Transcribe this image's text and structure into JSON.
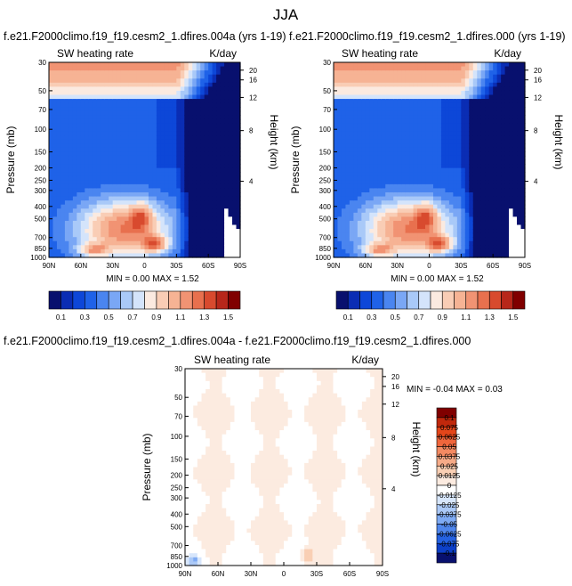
{
  "figure": {
    "title": "JJA"
  },
  "chart_data": [
    {
      "type": "heatmap",
      "title": "f.e21.F2000climo.f19_f19.cesm2_1.dfires.004a (yrs 1-19)",
      "left_subtitle": "SW heating rate",
      "right_subtitle": "K/day",
      "xlabel": "",
      "ylabel": "Pressure (mb)",
      "y2label": "Height (km)",
      "x_ticks": [
        "90N",
        "60N",
        "30N",
        "0",
        "30S",
        "60S",
        "90S"
      ],
      "y_ticks": [
        "30",
        "50",
        "70",
        "100",
        "150",
        "200",
        "250",
        "300",
        "400",
        "500",
        "700",
        "850",
        "1000"
      ],
      "y_tick_values": [
        30,
        50,
        70,
        100,
        150,
        200,
        250,
        300,
        400,
        500,
        700,
        850,
        1000
      ],
      "y2_ticks": [
        "20",
        "16",
        "12",
        "8",
        "4"
      ],
      "ylim": [
        1000,
        30
      ],
      "min_max": "MIN = 0.00 MAX = 1.52",
      "colorbar_labels": [
        "0.1",
        "0.3",
        "0.5",
        "0.7",
        "0.9",
        "1.1",
        "1.3",
        "1.5"
      ],
      "levels": [
        0.1,
        0.2,
        0.3,
        0.4,
        0.5,
        0.6,
        0.7,
        0.8,
        0.9,
        1.0,
        1.1,
        1.2,
        1.3,
        1.4,
        1.5
      ],
      "colors": [
        "#08106e",
        "#0a2db4",
        "#0d47d8",
        "#1f62e8",
        "#4a85f0",
        "#7aa7f5",
        "#a9c9f8",
        "#d4e4fb",
        "#fbeae0",
        "#f9cdb5",
        "#f6b394",
        "#f19373",
        "#e8704e",
        "#d84a2e",
        "#b7271a",
        "#800000"
      ]
    },
    {
      "type": "heatmap",
      "title": "f.e21.F2000climo.f19_f19.cesm2_1.dfires.000 (yrs 1-19)",
      "left_subtitle": "SW heating rate",
      "right_subtitle": "K/day",
      "xlabel": "",
      "ylabel": "Pressure (mb)",
      "y2label": "Height (km)",
      "x_ticks": [
        "90N",
        "60N",
        "30N",
        "0",
        "30S",
        "60S",
        "90S"
      ],
      "y_ticks": [
        "30",
        "50",
        "70",
        "100",
        "150",
        "200",
        "250",
        "300",
        "400",
        "500",
        "700",
        "850",
        "1000"
      ],
      "y_tick_values": [
        30,
        50,
        70,
        100,
        150,
        200,
        250,
        300,
        400,
        500,
        700,
        850,
        1000
      ],
      "y2_ticks": [
        "20",
        "16",
        "12",
        "8",
        "4"
      ],
      "ylim": [
        1000,
        30
      ],
      "min_max": "MIN = 0.00 MAX = 1.52",
      "colorbar_labels": [
        "0.1",
        "0.3",
        "0.5",
        "0.7",
        "0.9",
        "1.1",
        "1.3",
        "1.5"
      ],
      "levels": [
        0.1,
        0.2,
        0.3,
        0.4,
        0.5,
        0.6,
        0.7,
        0.8,
        0.9,
        1.0,
        1.1,
        1.2,
        1.3,
        1.4,
        1.5
      ],
      "colors": [
        "#08106e",
        "#0a2db4",
        "#0d47d8",
        "#1f62e8",
        "#4a85f0",
        "#7aa7f5",
        "#a9c9f8",
        "#d4e4fb",
        "#fbeae0",
        "#f9cdb5",
        "#f6b394",
        "#f19373",
        "#e8704e",
        "#d84a2e",
        "#b7271a",
        "#800000"
      ]
    },
    {
      "type": "heatmap",
      "title": "f.e21.F2000climo.f19_f19.cesm2_1.dfires.004a - f.e21.F2000climo.f19_f19.cesm2_1.dfires.000",
      "left_subtitle": "SW heating rate",
      "right_subtitle": "K/day",
      "xlabel": "",
      "ylabel": "Pressure (mb)",
      "y2label": "Height (km)",
      "x_ticks": [
        "90N",
        "60N",
        "30N",
        "0",
        "30S",
        "60S",
        "90S"
      ],
      "y_ticks": [
        "30",
        "50",
        "70",
        "100",
        "150",
        "200",
        "250",
        "300",
        "400",
        "500",
        "700",
        "850",
        "1000"
      ],
      "y_tick_values": [
        30,
        50,
        70,
        100,
        150,
        200,
        250,
        300,
        400,
        500,
        700,
        850,
        1000
      ],
      "y2_ticks": [
        "20",
        "16",
        "12",
        "8",
        "4"
      ],
      "ylim": [
        1000,
        30
      ],
      "min_max": "MIN = -0.04 MAX = 0.03",
      "colorbar_labels": [
        "0.1",
        "0.075",
        "0.0625",
        "0.05",
        "0.0375",
        "0.025",
        "0.0125",
        "0",
        "-0.0125",
        "-0.025",
        "-0.0375",
        "-0.05",
        "-0.0625",
        "-0.075",
        "-0.1"
      ],
      "levels": [
        0.1,
        0.075,
        0.0625,
        0.05,
        0.0375,
        0.025,
        0.0125,
        0,
        -0.0125,
        -0.025,
        -0.0375,
        -0.05,
        -0.0625,
        -0.075,
        -0.1
      ],
      "colors": [
        "#800000",
        "#c0280c",
        "#e4461a",
        "#f0663c",
        "#f38a62",
        "#f6ab88",
        "#f9cfb4",
        "#fcebe0",
        "#ffffff",
        "#d7e6fb",
        "#abc9f7",
        "#7eaaf3",
        "#4f86ec",
        "#2562e2",
        "#0d40c8",
        "#08106e"
      ]
    }
  ]
}
